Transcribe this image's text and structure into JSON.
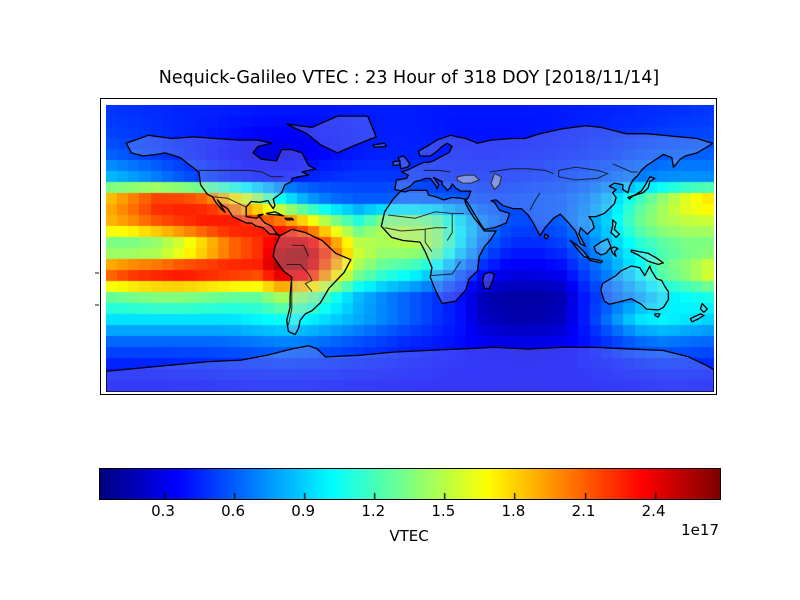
{
  "title": "Nequick-Galileo VTEC : 23 Hour of 318 DOY [2018/11/14]",
  "chart_data": {
    "type": "heatmap",
    "title": "Nequick-Galileo VTEC : 23 Hour of 318 DOY [2018/11/14]",
    "projection": "equirectangular world map, lon -180..180, lat -90..90, coastlines and country borders overlaid",
    "colormap": "jet",
    "units_exponent_label": "1e17",
    "colorbar": {
      "label": "VTEC",
      "orientation": "horizontal",
      "vmin": 0.026,
      "vmax": 2.68,
      "tick_values": [
        0.3,
        0.6,
        0.9,
        1.2,
        1.5,
        1.8,
        2.1,
        2.4
      ],
      "tick_labels": [
        "0.3",
        "0.6",
        "0.9",
        "1.2",
        "1.5",
        "1.8",
        "2.1",
        "2.4"
      ]
    },
    "grid_lats": [
      90,
      75,
      60,
      45,
      30,
      15,
      0,
      -15,
      -30,
      -45,
      -60,
      -75,
      -90
    ],
    "grid_lons": [
      -180,
      -165,
      -150,
      -135,
      -120,
      -105,
      -90,
      -75,
      -60,
      -45,
      -30,
      -15,
      0,
      15,
      30,
      45,
      60,
      75,
      90,
      105,
      120,
      135,
      150,
      165,
      180
    ],
    "values_1e17": [
      [
        0.5,
        0.48,
        0.47,
        0.45,
        0.45,
        0.44,
        0.43,
        0.42,
        0.42,
        0.42,
        0.43,
        0.43,
        0.43,
        0.42,
        0.42,
        0.42,
        0.42,
        0.42,
        0.43,
        0.44,
        0.45,
        0.46,
        0.47,
        0.48,
        0.5
      ],
      [
        0.52,
        0.5,
        0.48,
        0.45,
        0.43,
        0.4,
        0.38,
        0.37,
        0.38,
        0.4,
        0.42,
        0.43,
        0.43,
        0.42,
        0.4,
        0.4,
        0.4,
        0.41,
        0.42,
        0.44,
        0.46,
        0.48,
        0.5,
        0.52,
        0.53
      ],
      [
        0.6,
        0.55,
        0.5,
        0.45,
        0.4,
        0.35,
        0.28,
        0.28,
        0.33,
        0.38,
        0.42,
        0.44,
        0.44,
        0.43,
        0.42,
        0.41,
        0.42,
        0.43,
        0.45,
        0.47,
        0.5,
        0.55,
        0.58,
        0.6,
        0.6
      ],
      [
        0.85,
        0.78,
        0.68,
        0.58,
        0.5,
        0.44,
        0.4,
        0.4,
        0.44,
        0.48,
        0.5,
        0.5,
        0.49,
        0.47,
        0.46,
        0.46,
        0.47,
        0.49,
        0.52,
        0.56,
        0.62,
        0.68,
        0.72,
        0.74,
        0.72
      ],
      [
        1.9,
        2.1,
        2.3,
        2.3,
        2.2,
        1.9,
        1.5,
        1.05,
        0.8,
        0.65,
        0.6,
        0.6,
        0.63,
        0.62,
        0.6,
        0.55,
        0.55,
        0.58,
        0.6,
        0.7,
        0.9,
        1.2,
        1.45,
        1.7,
        1.85
      ],
      [
        1.85,
        1.95,
        2.1,
        2.2,
        2.3,
        2.35,
        2.3,
        2.2,
        1.9,
        1.5,
        1.2,
        1.5,
        1.5,
        1.4,
        1.0,
        0.7,
        0.55,
        0.55,
        0.6,
        0.75,
        0.95,
        1.3,
        1.45,
        1.5,
        1.5
      ],
      [
        1.2,
        1.15,
        1.2,
        1.4,
        1.7,
        2.0,
        2.2,
        2.55,
        2.6,
        2.1,
        1.6,
        1.45,
        1.5,
        1.45,
        0.95,
        0.6,
        0.45,
        0.45,
        0.5,
        0.65,
        0.85,
        1.05,
        1.2,
        1.3,
        1.3
      ],
      [
        2.2,
        2.35,
        2.4,
        2.45,
        2.4,
        2.35,
        2.3,
        2.6,
        2.5,
        1.9,
        1.4,
        1.2,
        1.1,
        0.9,
        0.6,
        0.4,
        0.3,
        0.3,
        0.35,
        0.55,
        0.75,
        1.0,
        1.3,
        1.45,
        1.7
      ],
      [
        1.3,
        1.35,
        1.4,
        1.4,
        1.35,
        1.3,
        1.3,
        1.5,
        1.4,
        1.1,
        0.85,
        0.7,
        0.6,
        0.5,
        0.38,
        0.15,
        0.12,
        0.12,
        0.15,
        0.45,
        0.6,
        0.75,
        0.95,
        1.05,
        1.1
      ],
      [
        0.95,
        0.95,
        0.95,
        0.95,
        0.95,
        0.95,
        1.0,
        1.05,
        1.0,
        0.9,
        0.8,
        0.7,
        0.6,
        0.5,
        0.4,
        0.2,
        0.15,
        0.15,
        0.2,
        0.45,
        0.7,
        0.95,
        1.0,
        0.95,
        0.9
      ],
      [
        0.6,
        0.6,
        0.6,
        0.6,
        0.6,
        0.62,
        0.65,
        0.68,
        0.65,
        0.6,
        0.55,
        0.5,
        0.45,
        0.42,
        0.38,
        0.33,
        0.3,
        0.3,
        0.33,
        0.4,
        0.5,
        0.6,
        0.65,
        0.62,
        0.6
      ],
      [
        0.42,
        0.42,
        0.42,
        0.43,
        0.44,
        0.45,
        0.46,
        0.47,
        0.46,
        0.45,
        0.43,
        0.42,
        0.4,
        0.38,
        0.37,
        0.36,
        0.35,
        0.35,
        0.36,
        0.38,
        0.4,
        0.43,
        0.45,
        0.45,
        0.44
      ],
      [
        0.35,
        0.35,
        0.35,
        0.36,
        0.36,
        0.37,
        0.38,
        0.38,
        0.38,
        0.37,
        0.36,
        0.36,
        0.35,
        0.35,
        0.34,
        0.34,
        0.34,
        0.34,
        0.34,
        0.35,
        0.36,
        0.37,
        0.38,
        0.38,
        0.37
      ]
    ],
    "display_grid": {
      "cols": 54,
      "rows": 26
    },
    "land_fill": "rgba(190,200,230,0.28)",
    "coast_stroke": "#000000",
    "lake_fill": "rgba(195,202,216,0.55)"
  }
}
